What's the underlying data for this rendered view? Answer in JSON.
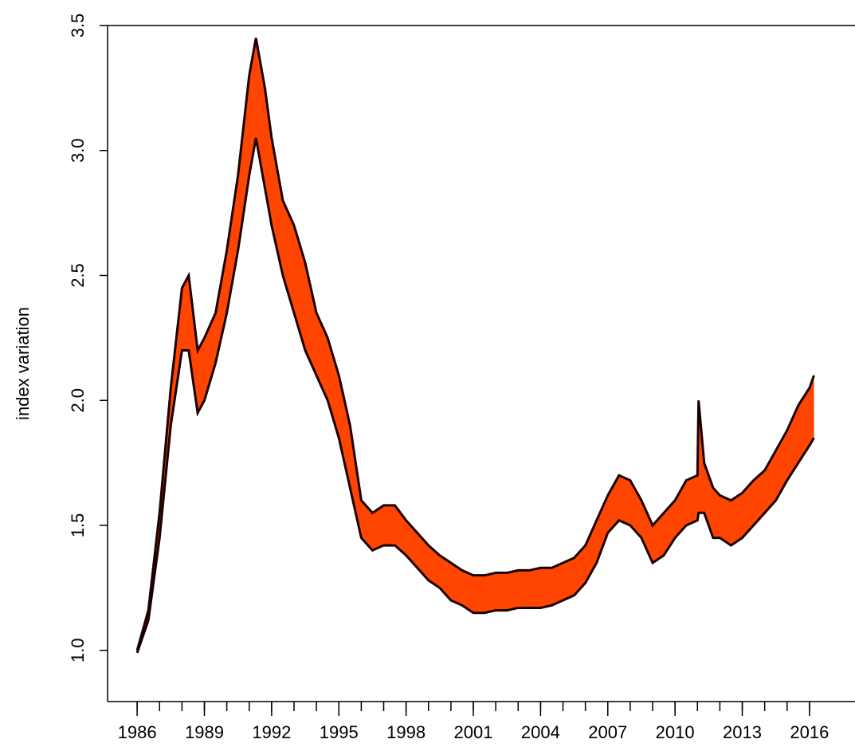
{
  "chart_data": {
    "type": "band",
    "y_label": "index variation",
    "xlim": [
      1984.68,
      2018.03
    ],
    "ylim": [
      0.795,
      3.5
    ],
    "xticks": [
      1986,
      1989,
      1992,
      1995,
      1998,
      2001,
      2004,
      2007,
      2010,
      2013,
      2016
    ],
    "xminor_ticks": [
      1986,
      1987,
      1988,
      1989,
      1990,
      1991,
      1992,
      1993,
      1994,
      1995,
      1996,
      1997,
      1998,
      1999,
      2000,
      2001,
      2002,
      2003,
      2004,
      2005,
      2006,
      2007,
      2008,
      2009,
      2010,
      2011,
      2012,
      2013,
      2014,
      2015,
      2016
    ],
    "yticks": [
      {
        "value": 1,
        "label": "1.0"
      },
      1.5,
      {
        "value": 2,
        "label": "2.0"
      },
      2.5,
      {
        "value": 3,
        "label": "3.0"
      },
      3.5
    ],
    "fill_color": "#ff4500",
    "x": [
      1986.0,
      1986.5,
      1987.0,
      1987.5,
      1988.0,
      1988.3,
      1988.7,
      1989.0,
      1989.5,
      1990.0,
      1990.5,
      1991.0,
      1991.3,
      1991.7,
      1992.0,
      1992.5,
      1993.0,
      1993.5,
      1994.0,
      1994.5,
      1995.0,
      1995.5,
      1996.0,
      1996.5,
      1997.0,
      1997.5,
      1998.0,
      1998.5,
      1999.0,
      1999.5,
      2000.0,
      2000.5,
      2001.0,
      2001.5,
      2002.0,
      2002.5,
      2003.0,
      2003.5,
      2004.0,
      2004.5,
      2005.0,
      2005.5,
      2006.0,
      2006.5,
      2007.0,
      2007.5,
      2008.0,
      2008.5,
      2009.0,
      2009.5,
      2010.0,
      2010.5,
      2011.0,
      2011.05,
      2011.3,
      2011.7,
      2012.0,
      2012.5,
      2013.0,
      2013.5,
      2014.0,
      2014.5,
      2015.0,
      2015.5,
      2016.0,
      2016.2
    ],
    "series": [
      {
        "name": "lower",
        "color": "#1a0000",
        "values": [
          0.99,
          1.12,
          1.45,
          1.9,
          2.2,
          2.2,
          1.95,
          2.0,
          2.15,
          2.35,
          2.6,
          2.9,
          3.05,
          2.85,
          2.7,
          2.5,
          2.35,
          2.2,
          2.1,
          2.0,
          1.85,
          1.65,
          1.45,
          1.4,
          1.42,
          1.42,
          1.38,
          1.33,
          1.28,
          1.25,
          1.2,
          1.18,
          1.15,
          1.15,
          1.16,
          1.16,
          1.17,
          1.17,
          1.17,
          1.18,
          1.2,
          1.22,
          1.27,
          1.35,
          1.47,
          1.52,
          1.5,
          1.45,
          1.35,
          1.38,
          1.45,
          1.5,
          1.52,
          1.55,
          1.55,
          1.45,
          1.45,
          1.42,
          1.45,
          1.5,
          1.55,
          1.6,
          1.68,
          1.75,
          1.82,
          1.85
        ]
      },
      {
        "name": "upper",
        "color": "#1a0000",
        "values": [
          1.0,
          1.16,
          1.55,
          2.05,
          2.45,
          2.5,
          2.2,
          2.25,
          2.35,
          2.6,
          2.9,
          3.3,
          3.45,
          3.25,
          3.05,
          2.8,
          2.7,
          2.55,
          2.35,
          2.25,
          2.1,
          1.9,
          1.6,
          1.55,
          1.58,
          1.58,
          1.52,
          1.47,
          1.42,
          1.38,
          1.35,
          1.32,
          1.3,
          1.3,
          1.31,
          1.31,
          1.32,
          1.32,
          1.33,
          1.33,
          1.35,
          1.37,
          1.42,
          1.52,
          1.62,
          1.7,
          1.68,
          1.6,
          1.5,
          1.55,
          1.6,
          1.68,
          1.7,
          2.0,
          1.75,
          1.65,
          1.62,
          1.6,
          1.63,
          1.68,
          1.72,
          1.8,
          1.88,
          1.98,
          2.05,
          2.1
        ]
      }
    ]
  }
}
